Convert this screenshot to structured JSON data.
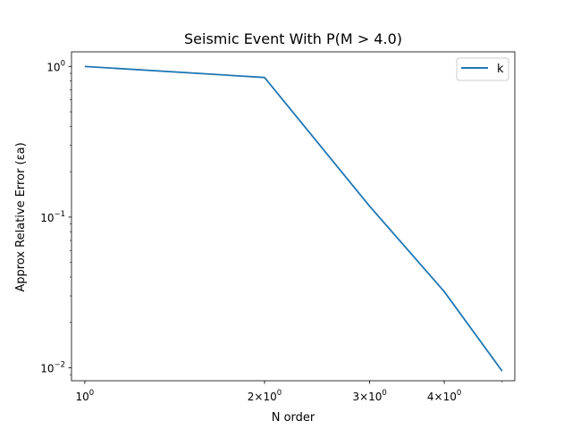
{
  "chart_data": {
    "type": "line",
    "title": "Seismic Event With P(M > 4.0)",
    "xlabel": "N order",
    "ylabel": "Approx Relative Error (εa)",
    "xscale": "log",
    "yscale": "log",
    "xlim": [
      0.95,
      5.25
    ],
    "ylim": [
      0.0082,
      1.25
    ],
    "grid": false,
    "legend_position": "upper right",
    "x_ticks": [
      {
        "value": 1,
        "base": "10",
        "exp": "0",
        "coef": ""
      },
      {
        "value": 2,
        "base": "10",
        "exp": "0",
        "coef": "2×"
      },
      {
        "value": 3,
        "base": "10",
        "exp": "0",
        "coef": "3×"
      },
      {
        "value": 4,
        "base": "10",
        "exp": "0",
        "coef": "4×"
      }
    ],
    "y_ticks": [
      {
        "value": 1,
        "base": "10",
        "exp": "0"
      },
      {
        "value": 0.1,
        "base": "10",
        "exp": "−1"
      },
      {
        "value": 0.01,
        "base": "10",
        "exp": "−2"
      }
    ],
    "series": [
      {
        "name": "k",
        "color": "#1f77b4",
        "x": [
          1,
          2,
          3,
          4,
          5
        ],
        "y": [
          1.0,
          0.845,
          0.118,
          0.032,
          0.0095
        ]
      }
    ]
  }
}
